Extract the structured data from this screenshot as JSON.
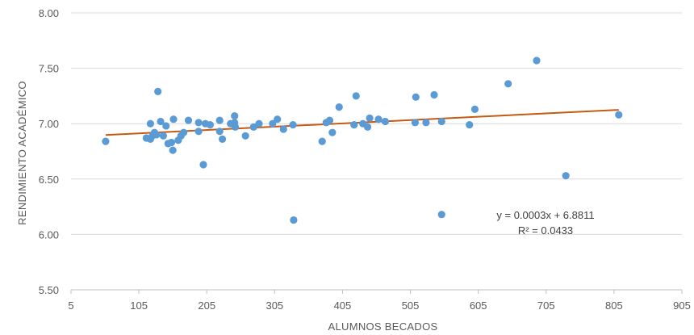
{
  "chart_data": {
    "type": "scatter",
    "title": "",
    "xlabel": "ALUMNOS BECADOS",
    "ylabel": "RENDIMIENTO ACADÉMICO",
    "xlim": [
      5,
      905
    ],
    "ylim": [
      5.5,
      8.0
    ],
    "x_ticks": [
      5,
      105,
      205,
      305,
      405,
      505,
      605,
      705,
      805,
      905
    ],
    "x_tick_labels": [
      "5",
      "105",
      "205",
      "305",
      "405",
      "505",
      "605",
      "705",
      "805",
      "905"
    ],
    "y_ticks": [
      5.5,
      6.0,
      6.5,
      7.0,
      7.5,
      8.0
    ],
    "y_tick_labels": [
      "5.50",
      "6.00",
      "6.50",
      "7.00",
      "7.50",
      "8.00"
    ],
    "grid": "horizontal",
    "legend": "none",
    "series": [
      {
        "color": "#5b9bd5",
        "points": [
          [
            56,
            6.84
          ],
          [
            116,
            6.87
          ],
          [
            122,
            7.0
          ],
          [
            122,
            6.86
          ],
          [
            125,
            6.89
          ],
          [
            128,
            6.92
          ],
          [
            131,
            6.9
          ],
          [
            133,
            7.29
          ],
          [
            137,
            7.02
          ],
          [
            141,
            6.89
          ],
          [
            145,
            6.98
          ],
          [
            148,
            6.82
          ],
          [
            153,
            6.83
          ],
          [
            155,
            6.76
          ],
          [
            156,
            7.04
          ],
          [
            163,
            6.85
          ],
          [
            167,
            6.89
          ],
          [
            171,
            6.92
          ],
          [
            178,
            7.03
          ],
          [
            193,
            7.01
          ],
          [
            193,
            6.93
          ],
          [
            200,
            6.63
          ],
          [
            203,
            7.0
          ],
          [
            210,
            6.99
          ],
          [
            224,
            7.03
          ],
          [
            224,
            6.93
          ],
          [
            228,
            6.86
          ],
          [
            240,
            7.0
          ],
          [
            246,
            7.07
          ],
          [
            246,
            7.01
          ],
          [
            247,
            6.97
          ],
          [
            262,
            6.89
          ],
          [
            274,
            6.97
          ],
          [
            282,
            7.0
          ],
          [
            302,
            7.0
          ],
          [
            309,
            7.04
          ],
          [
            318,
            6.95
          ],
          [
            332,
            6.99
          ],
          [
            333,
            6.13
          ],
          [
            375,
            6.84
          ],
          [
            381,
            7.01
          ],
          [
            386,
            7.03
          ],
          [
            390,
            6.92
          ],
          [
            400,
            7.15
          ],
          [
            422,
            6.99
          ],
          [
            425,
            7.25
          ],
          [
            435,
            7.0
          ],
          [
            442,
            6.97
          ],
          [
            445,
            7.05
          ],
          [
            458,
            7.04
          ],
          [
            468,
            7.02
          ],
          [
            512,
            7.01
          ],
          [
            513,
            7.24
          ],
          [
            528,
            7.01
          ],
          [
            540,
            7.26
          ],
          [
            551,
            7.02
          ],
          [
            551,
            6.18
          ],
          [
            592,
            6.99
          ],
          [
            600,
            7.13
          ],
          [
            649,
            7.36
          ],
          [
            691,
            7.57
          ],
          [
            734,
            6.53
          ],
          [
            812,
            7.08
          ]
        ]
      }
    ],
    "trendline": {
      "type": "linear",
      "color": "#c55a11",
      "slope": 0.0003,
      "intercept": 6.8811,
      "x_range": [
        56,
        812
      ],
      "equation": "y = 0.0003x + 6.8811",
      "r_squared": "R² = 0.0433"
    },
    "colors": {
      "grid": "#d9d9d9",
      "axis": "#bfbfbf",
      "text": "#595959"
    }
  }
}
